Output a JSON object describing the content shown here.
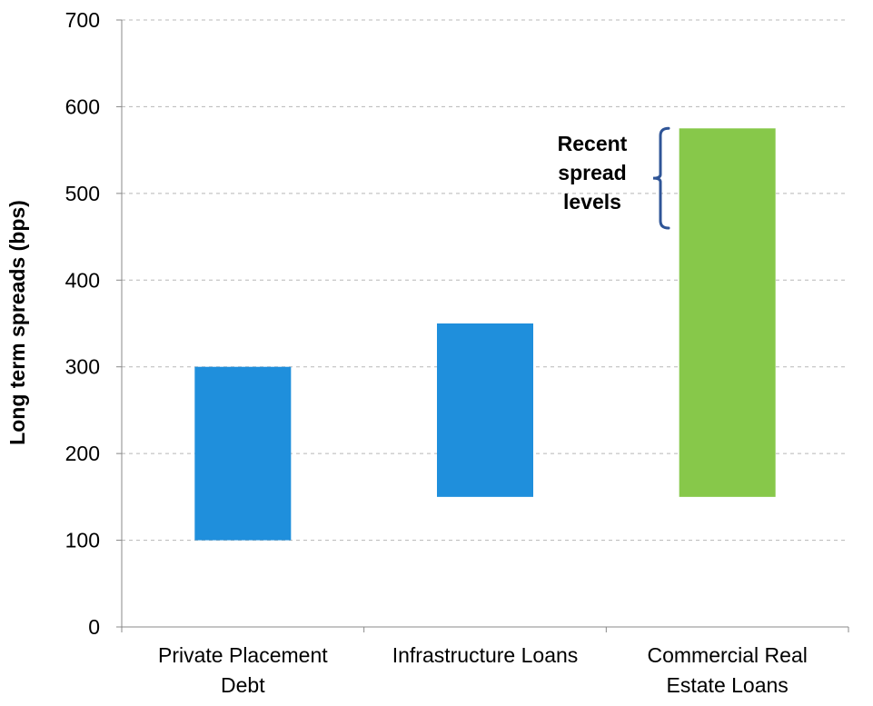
{
  "chart_data": {
    "type": "bar",
    "subtype": "floating-range",
    "ylabel": "Long term spreads (bps)",
    "ylim": [
      0,
      700
    ],
    "yticks": [
      0,
      100,
      200,
      300,
      400,
      500,
      600,
      700
    ],
    "grid": true,
    "categories": [
      [
        "Private Placement",
        "Debt"
      ],
      [
        "Infrastructure Loans"
      ],
      [
        "Commercial Real",
        "Estate Loans"
      ]
    ],
    "ranges": [
      {
        "low": 100,
        "high": 300,
        "color": "#1f8fdc"
      },
      {
        "low": 150,
        "high": 350,
        "color": "#1f8fdc"
      },
      {
        "low": 150,
        "high": 575,
        "color": "#87c84a"
      }
    ],
    "annotation": {
      "text": [
        "Recent",
        "spread",
        "levels"
      ],
      "low": 460,
      "high": 575,
      "color": "#2f5597"
    }
  }
}
